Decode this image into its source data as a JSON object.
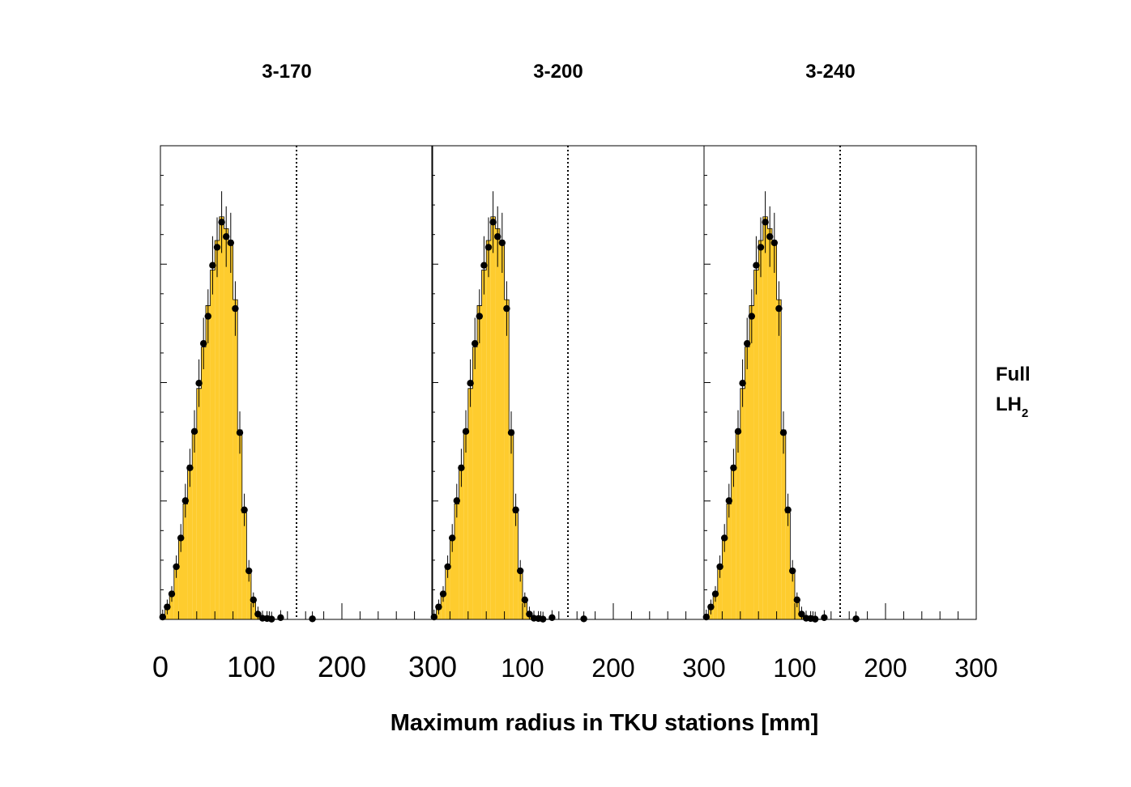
{
  "chart_data": {
    "type": "bar",
    "xlabel": "Maximum radius in TKU stations [mm]",
    "xlim": [
      0,
      300
    ],
    "annotation": {
      "line1": "Full",
      "line2_main": "LH",
      "line2_sub": "2"
    },
    "reference_line_x": 150,
    "panels": [
      {
        "title": "3-170"
      },
      {
        "title": "3-200"
      },
      {
        "title": "3-240"
      }
    ],
    "x": [
      2.5,
      7.5,
      12.5,
      17.5,
      22.5,
      27.5,
      32.5,
      37.5,
      42.5,
      47.5,
      52.5,
      57.5,
      62.5,
      67.5,
      72.5,
      77.5,
      82.5,
      87.5,
      92.5,
      97.5,
      102.5,
      107.5,
      112.5,
      117.5,
      122.5,
      127.5,
      132.5,
      137.5,
      142.5,
      147.5,
      152.5,
      157.5,
      162.5,
      167.5,
      172.5
    ],
    "mc_values": [
      1,
      4,
      9,
      18,
      28,
      39,
      52,
      64,
      78,
      92,
      106,
      118,
      128,
      136,
      132,
      128,
      108,
      64,
      36,
      16,
      6,
      2,
      0.8,
      0.3,
      0.2,
      0.1,
      0,
      0,
      0,
      0,
      0,
      0,
      0,
      0,
      0
    ],
    "data_values": [
      0.8,
      4.2,
      8.6,
      17.8,
      27.5,
      40.1,
      51.2,
      63.5,
      79.8,
      93.2,
      102.4,
      119.6,
      125.7,
      134.2,
      129.3,
      127.2,
      105.0,
      63.1,
      37.0,
      16.4,
      6.6,
      1.8,
      0.4,
      0.3,
      0.1,
      0,
      0.6,
      0,
      0,
      0,
      0,
      0,
      0,
      0.2,
      0
    ],
    "tick_labels_major": [
      "0",
      "100",
      "200",
      "300"
    ],
    "colors": {
      "mc_fill": "#fecc2e",
      "outline": "#000000",
      "marker": "#000000"
    }
  }
}
